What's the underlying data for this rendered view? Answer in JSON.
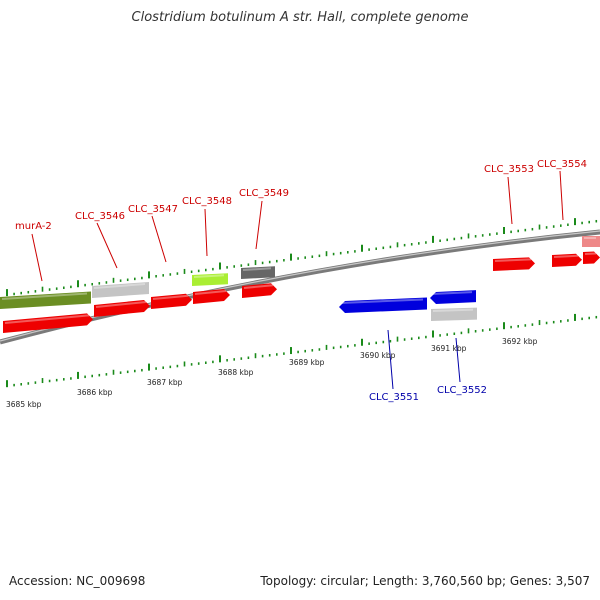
{
  "title": "Clostridium botulinum A str. Hall, complete genome",
  "footer": {
    "accession": "Accession: NC_009698",
    "summary": "Topology: circular; Length: 3,760,560 bp; Genes: 3,507"
  },
  "colors": {
    "forward_cds": "#ee0000",
    "reverse_cds": "#0000dd",
    "forward_label": "#cc0000",
    "reverse_label": "#0000aa",
    "backbone": "#888888",
    "tick": "#1a8a1a",
    "feature_olive": "#6b8e23",
    "feature_lime": "#aaee33",
    "feature_gray": "#c4c4c4",
    "feature_darkgray": "#666666",
    "feature_pink": "#ee8888"
  },
  "axis": {
    "unit": "kbp",
    "tick_labels": [
      "3685 kbp",
      "3686 kbp",
      "3687 kbp",
      "3688 kbp",
      "3689 kbp",
      "3690 kbp",
      "3691 kbp",
      "3692 kbp"
    ]
  },
  "genes": {
    "forward_labeled": [
      "murA-2",
      "CLC_3546",
      "CLC_3547",
      "CLC_3548",
      "CLC_3549",
      "CLC_3553",
      "CLC_3554"
    ],
    "reverse_labeled": [
      "CLC_3551",
      "CLC_3552"
    ]
  }
}
